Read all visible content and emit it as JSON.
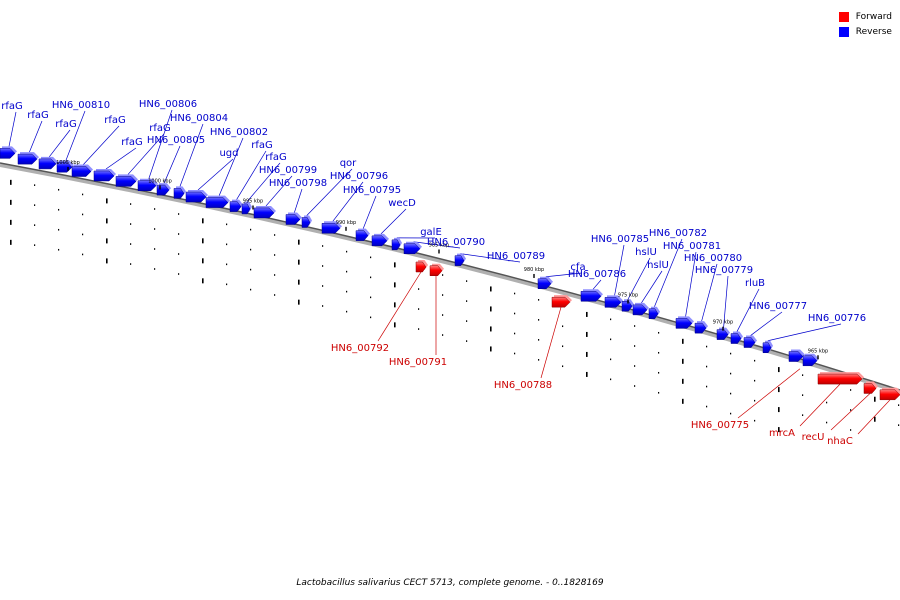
{
  "legend": [
    {
      "label": "Forward",
      "color": "#ff0000"
    },
    {
      "label": "Reverse",
      "color": "#0000ff"
    }
  ],
  "caption": "Lactobacillus salivarius CECT 5713, complete genome. - 0..1828169",
  "kbp_labels": [
    "1005 kbp",
    "1000 kbp",
    "995 kbp",
    "990 kbp",
    "985 kbp",
    "980 kbp",
    "975 kbp",
    "970 kbp",
    "965 kbp"
  ],
  "genes": [
    {
      "label": "rfaG",
      "strand": "reverse"
    },
    {
      "label": "rfaG",
      "strand": "reverse"
    },
    {
      "label": "rfaG",
      "strand": "reverse"
    },
    {
      "label": "HN6_00810",
      "strand": "reverse"
    },
    {
      "label": "rfaG",
      "strand": "reverse"
    },
    {
      "label": "rfaG",
      "strand": "reverse"
    },
    {
      "label": "rfaG",
      "strand": "reverse"
    },
    {
      "label": "HN6_00806",
      "strand": "reverse"
    },
    {
      "label": "HN6_00805",
      "strand": "reverse"
    },
    {
      "label": "HN6_00804",
      "strand": "reverse"
    },
    {
      "label": "ugd",
      "strand": "reverse"
    },
    {
      "label": "HN6_00802",
      "strand": "reverse"
    },
    {
      "label": "rfaG",
      "strand": "reverse"
    },
    {
      "label": "rfaG",
      "strand": "reverse"
    },
    {
      "label": "HN6_00799",
      "strand": "reverse"
    },
    {
      "label": "HN6_00798",
      "strand": "reverse"
    },
    {
      "label": "qor",
      "strand": "reverse"
    },
    {
      "label": "HN6_00796",
      "strand": "reverse"
    },
    {
      "label": "HN6_00795",
      "strand": "reverse"
    },
    {
      "label": "wecD",
      "strand": "reverse"
    },
    {
      "label": "galE",
      "strand": "reverse"
    },
    {
      "label": "HN6_00790",
      "strand": "reverse"
    },
    {
      "label": "HN6_00789",
      "strand": "reverse"
    },
    {
      "label": "cfa",
      "strand": "reverse"
    },
    {
      "label": "HN6_00786",
      "strand": "reverse"
    },
    {
      "label": "HN6_00785",
      "strand": "reverse"
    },
    {
      "label": "hslU",
      "strand": "reverse"
    },
    {
      "label": "hslU",
      "strand": "reverse"
    },
    {
      "label": "HN6_00782",
      "strand": "reverse"
    },
    {
      "label": "HN6_00781",
      "strand": "reverse"
    },
    {
      "label": "HN6_00780",
      "strand": "reverse"
    },
    {
      "label": "HN6_00779",
      "strand": "reverse"
    },
    {
      "label": "rluB",
      "strand": "reverse"
    },
    {
      "label": "HN6_00777",
      "strand": "reverse"
    },
    {
      "label": "HN6_00776",
      "strand": "reverse"
    },
    {
      "label": "HN6_00792",
      "strand": "forward"
    },
    {
      "label": "HN6_00791",
      "strand": "forward"
    },
    {
      "label": "HN6_00788",
      "strand": "forward"
    },
    {
      "label": "HN6_00775",
      "strand": "forward"
    },
    {
      "label": "mrcA",
      "strand": "forward"
    },
    {
      "label": "recU",
      "strand": "forward"
    },
    {
      "label": "nhaC",
      "strand": "forward"
    }
  ]
}
